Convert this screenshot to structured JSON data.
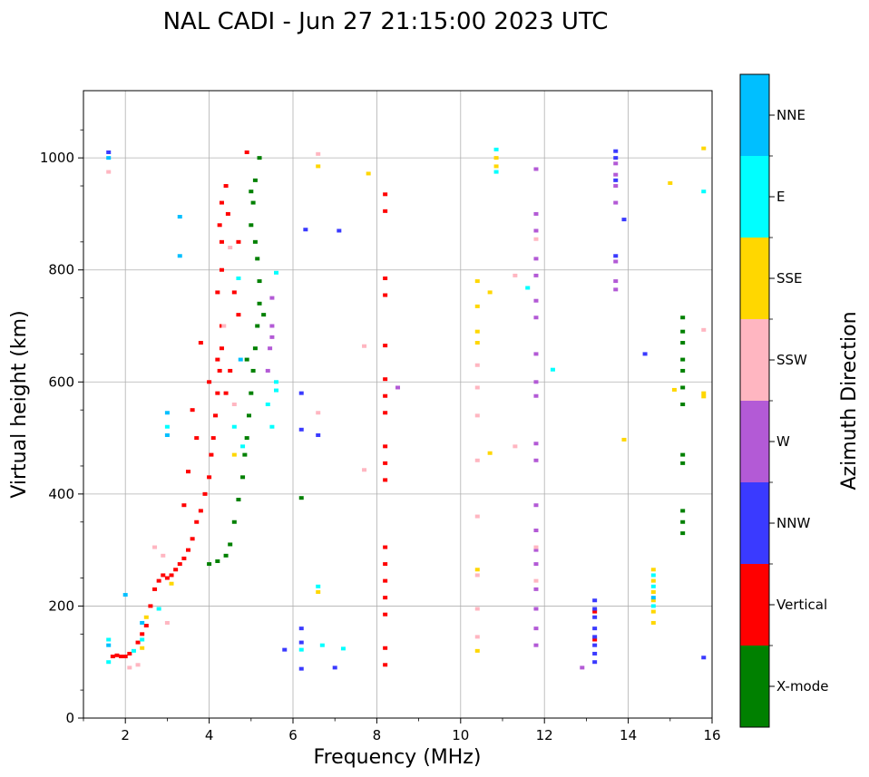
{
  "chart_data": {
    "type": "scatter",
    "title": "NAL CADI - Jun 27 21:15:00 2023 UTC",
    "xlabel": "Frequency (MHz)",
    "ylabel": "Virtual height (km)",
    "xlim": [
      1,
      16
    ],
    "ylim": [
      0,
      1120
    ],
    "xticks": [
      2,
      4,
      6,
      8,
      10,
      12,
      14,
      16
    ],
    "yticks": [
      0,
      200,
      400,
      600,
      800,
      1000
    ],
    "grid": true,
    "colorbar": {
      "title": "Azimuth Direction",
      "categories": [
        {
          "name": "NNE",
          "color": "#00bfff"
        },
        {
          "name": "E",
          "color": "#00ffff"
        },
        {
          "name": "SSE",
          "color": "#ffd700"
        },
        {
          "name": "SSW",
          "color": "#ffb6c1"
        },
        {
          "name": "W",
          "color": "#b35ad6"
        },
        {
          "name": "NNW",
          "color": "#3a3aff"
        },
        {
          "name": "Vertical",
          "color": "#ff0000"
        },
        {
          "name": "X-mode",
          "color": "#008000"
        }
      ]
    },
    "series": [
      {
        "name": "Vertical",
        "points": [
          [
            1.7,
            110
          ],
          [
            1.8,
            112
          ],
          [
            1.9,
            110
          ],
          [
            2.0,
            110
          ],
          [
            2.1,
            115
          ],
          [
            2.3,
            135
          ],
          [
            2.4,
            150
          ],
          [
            2.5,
            165
          ],
          [
            2.6,
            200
          ],
          [
            2.7,
            230
          ],
          [
            2.8,
            245
          ],
          [
            2.9,
            255
          ],
          [
            3.0,
            250
          ],
          [
            3.1,
            255
          ],
          [
            3.2,
            265
          ],
          [
            3.3,
            275
          ],
          [
            3.4,
            285
          ],
          [
            3.5,
            300
          ],
          [
            3.6,
            320
          ],
          [
            3.7,
            350
          ],
          [
            3.8,
            370
          ],
          [
            3.9,
            400
          ],
          [
            4.0,
            430
          ],
          [
            4.05,
            470
          ],
          [
            4.1,
            500
          ],
          [
            4.15,
            540
          ],
          [
            4.2,
            580
          ],
          [
            4.25,
            620
          ],
          [
            4.3,
            660
          ],
          [
            4.3,
            700
          ],
          [
            4.2,
            760
          ],
          [
            4.3,
            800
          ],
          [
            4.3,
            850
          ],
          [
            4.25,
            880
          ],
          [
            4.3,
            920
          ],
          [
            4.4,
            950
          ],
          [
            4.6,
            760
          ],
          [
            4.7,
            720
          ],
          [
            4.5,
            620
          ],
          [
            4.4,
            580
          ],
          [
            3.8,
            670
          ],
          [
            3.6,
            550
          ],
          [
            3.7,
            500
          ],
          [
            3.5,
            440
          ],
          [
            3.4,
            380
          ],
          [
            8.2,
            935
          ],
          [
            8.2,
            905
          ],
          [
            8.2,
            785
          ],
          [
            8.2,
            755
          ],
          [
            8.2,
            665
          ],
          [
            8.2,
            605
          ],
          [
            8.2,
            575
          ],
          [
            8.2,
            545
          ],
          [
            8.2,
            485
          ],
          [
            8.2,
            455
          ],
          [
            8.2,
            425
          ],
          [
            8.2,
            305
          ],
          [
            8.2,
            275
          ],
          [
            8.2,
            245
          ],
          [
            8.2,
            215
          ],
          [
            8.2,
            185
          ],
          [
            8.2,
            125
          ],
          [
            8.2,
            95
          ],
          [
            4.9,
            1010
          ],
          [
            4.45,
            900
          ],
          [
            4.7,
            850
          ],
          [
            4.2,
            640
          ],
          [
            4.0,
            600
          ],
          [
            13.2,
            190
          ],
          [
            13.2,
            140
          ]
        ]
      },
      {
        "name": "X-mode",
        "points": [
          [
            4.0,
            275
          ],
          [
            4.2,
            280
          ],
          [
            4.4,
            290
          ],
          [
            4.5,
            310
          ],
          [
            4.6,
            350
          ],
          [
            4.7,
            390
          ],
          [
            4.8,
            430
          ],
          [
            4.85,
            470
          ],
          [
            4.9,
            500
          ],
          [
            4.95,
            540
          ],
          [
            5.0,
            580
          ],
          [
            5.05,
            620
          ],
          [
            5.1,
            660
          ],
          [
            5.15,
            700
          ],
          [
            5.2,
            740
          ],
          [
            5.2,
            780
          ],
          [
            5.15,
            820
          ],
          [
            5.1,
            850
          ],
          [
            5.0,
            880
          ],
          [
            5.05,
            920
          ],
          [
            5.1,
            960
          ],
          [
            5.2,
            1000
          ],
          [
            5.0,
            940
          ],
          [
            4.9,
            640
          ],
          [
            5.3,
            720
          ],
          [
            15.3,
            715
          ],
          [
            15.3,
            690
          ],
          [
            15.3,
            670
          ],
          [
            15.3,
            640
          ],
          [
            15.3,
            620
          ],
          [
            15.3,
            590
          ],
          [
            15.3,
            560
          ],
          [
            15.3,
            470
          ],
          [
            15.3,
            455
          ],
          [
            15.3,
            370
          ],
          [
            15.3,
            350
          ],
          [
            15.3,
            330
          ],
          [
            6.2,
            393
          ]
        ]
      },
      {
        "name": "W",
        "points": [
          [
            11.8,
            980
          ],
          [
            11.8,
            900
          ],
          [
            11.8,
            870
          ],
          [
            11.8,
            820
          ],
          [
            11.8,
            790
          ],
          [
            11.8,
            745
          ],
          [
            11.8,
            715
          ],
          [
            11.8,
            650
          ],
          [
            11.8,
            600
          ],
          [
            11.8,
            575
          ],
          [
            11.8,
            490
          ],
          [
            11.8,
            460
          ],
          [
            11.8,
            380
          ],
          [
            11.8,
            335
          ],
          [
            11.8,
            300
          ],
          [
            11.8,
            275
          ],
          [
            11.8,
            230
          ],
          [
            11.8,
            195
          ],
          [
            11.8,
            160
          ],
          [
            11.8,
            130
          ],
          [
            13.7,
            990
          ],
          [
            13.7,
            970
          ],
          [
            13.7,
            950
          ],
          [
            13.7,
            920
          ],
          [
            13.7,
            780
          ],
          [
            13.7,
            765
          ],
          [
            13.7,
            815
          ],
          [
            5.5,
            700
          ],
          [
            5.5,
            680
          ],
          [
            5.45,
            660
          ],
          [
            5.5,
            750
          ],
          [
            5.4,
            620
          ],
          [
            8.5,
            590
          ],
          [
            12.9,
            90
          ]
        ]
      },
      {
        "name": "NNW",
        "points": [
          [
            13.7,
            1012
          ],
          [
            13.7,
            1000
          ],
          [
            13.7,
            960
          ],
          [
            13.9,
            890
          ],
          [
            13.7,
            825
          ],
          [
            13.2,
            210
          ],
          [
            13.2,
            195
          ],
          [
            13.2,
            180
          ],
          [
            13.2,
            160
          ],
          [
            13.2,
            145
          ],
          [
            13.2,
            130
          ],
          [
            13.2,
            115
          ],
          [
            13.2,
            100
          ],
          [
            14.4,
            650
          ],
          [
            15.8,
            108
          ],
          [
            6.2,
            580
          ],
          [
            6.2,
            515
          ],
          [
            6.2,
            160
          ],
          [
            6.2,
            135
          ],
          [
            6.2,
            88
          ],
          [
            7.0,
            90
          ],
          [
            6.3,
            872
          ],
          [
            7.1,
            870
          ],
          [
            1.6,
            1010
          ],
          [
            6.6,
            505
          ],
          [
            5.8,
            122
          ]
        ]
      },
      {
        "name": "SSW",
        "points": [
          [
            4.5,
            840
          ],
          [
            4.35,
            700
          ],
          [
            4.6,
            560
          ],
          [
            10.4,
            630
          ],
          [
            10.4,
            590
          ],
          [
            10.4,
            540
          ],
          [
            10.4,
            460
          ],
          [
            10.4,
            360
          ],
          [
            10.4,
            255
          ],
          [
            10.4,
            195
          ],
          [
            10.4,
            145
          ],
          [
            11.3,
            485
          ],
          [
            11.3,
            790
          ],
          [
            11.8,
            855
          ],
          [
            11.8,
            305
          ],
          [
            11.8,
            245
          ],
          [
            15.8,
            693
          ],
          [
            7.7,
            664
          ],
          [
            7.7,
            443
          ],
          [
            3.0,
            170
          ],
          [
            2.7,
            305
          ],
          [
            2.9,
            290
          ],
          [
            6.6,
            545
          ],
          [
            6.6,
            1007
          ],
          [
            1.6,
            975
          ],
          [
            2.1,
            90
          ],
          [
            2.3,
            95
          ]
        ]
      },
      {
        "name": "SSE",
        "points": [
          [
            10.4,
            780
          ],
          [
            10.4,
            735
          ],
          [
            10.4,
            690
          ],
          [
            10.4,
            670
          ],
          [
            10.4,
            265
          ],
          [
            10.4,
            120
          ],
          [
            10.7,
            760
          ],
          [
            10.7,
            473
          ],
          [
            14.6,
            265
          ],
          [
            14.6,
            245
          ],
          [
            14.6,
            225
          ],
          [
            14.6,
            210
          ],
          [
            14.6,
            190
          ],
          [
            14.6,
            170
          ],
          [
            15.0,
            955
          ],
          [
            15.1,
            586
          ],
          [
            15.8,
            1017
          ],
          [
            15.8,
            580
          ],
          [
            15.8,
            574
          ],
          [
            13.9,
            497
          ],
          [
            7.8,
            972
          ],
          [
            6.6,
            985
          ],
          [
            6.6,
            225
          ],
          [
            10.85,
            1000
          ],
          [
            10.85,
            985
          ],
          [
            2.5,
            180
          ],
          [
            2.4,
            125
          ],
          [
            3.1,
            240
          ],
          [
            4.6,
            470
          ]
        ]
      },
      {
        "name": "E",
        "points": [
          [
            4.7,
            785
          ],
          [
            5.6,
            795
          ],
          [
            5.6,
            600
          ],
          [
            5.6,
            585
          ],
          [
            5.5,
            520
          ],
          [
            4.6,
            520
          ],
          [
            4.8,
            485
          ],
          [
            5.4,
            560
          ],
          [
            6.2,
            122
          ],
          [
            6.7,
            130
          ],
          [
            7.2,
            124
          ],
          [
            10.85,
            1015
          ],
          [
            10.85,
            975
          ],
          [
            12.2,
            622
          ],
          [
            11.6,
            768
          ],
          [
            14.6,
            255
          ],
          [
            14.6,
            235
          ],
          [
            14.6,
            200
          ],
          [
            15.8,
            940
          ],
          [
            6.6,
            235
          ],
          [
            1.6,
            140
          ],
          [
            1.6,
            100
          ],
          [
            2.2,
            120
          ],
          [
            2.4,
            140
          ],
          [
            3.0,
            520
          ],
          [
            2.8,
            195
          ]
        ]
      },
      {
        "name": "NNE",
        "points": [
          [
            1.6,
            1000
          ],
          [
            3.3,
            895
          ],
          [
            3.3,
            825
          ],
          [
            3.0,
            545
          ],
          [
            3.0,
            505
          ],
          [
            4.75,
            640
          ],
          [
            1.6,
            130
          ],
          [
            2.0,
            220
          ],
          [
            2.4,
            170
          ],
          [
            14.6,
            215
          ]
        ]
      }
    ]
  }
}
